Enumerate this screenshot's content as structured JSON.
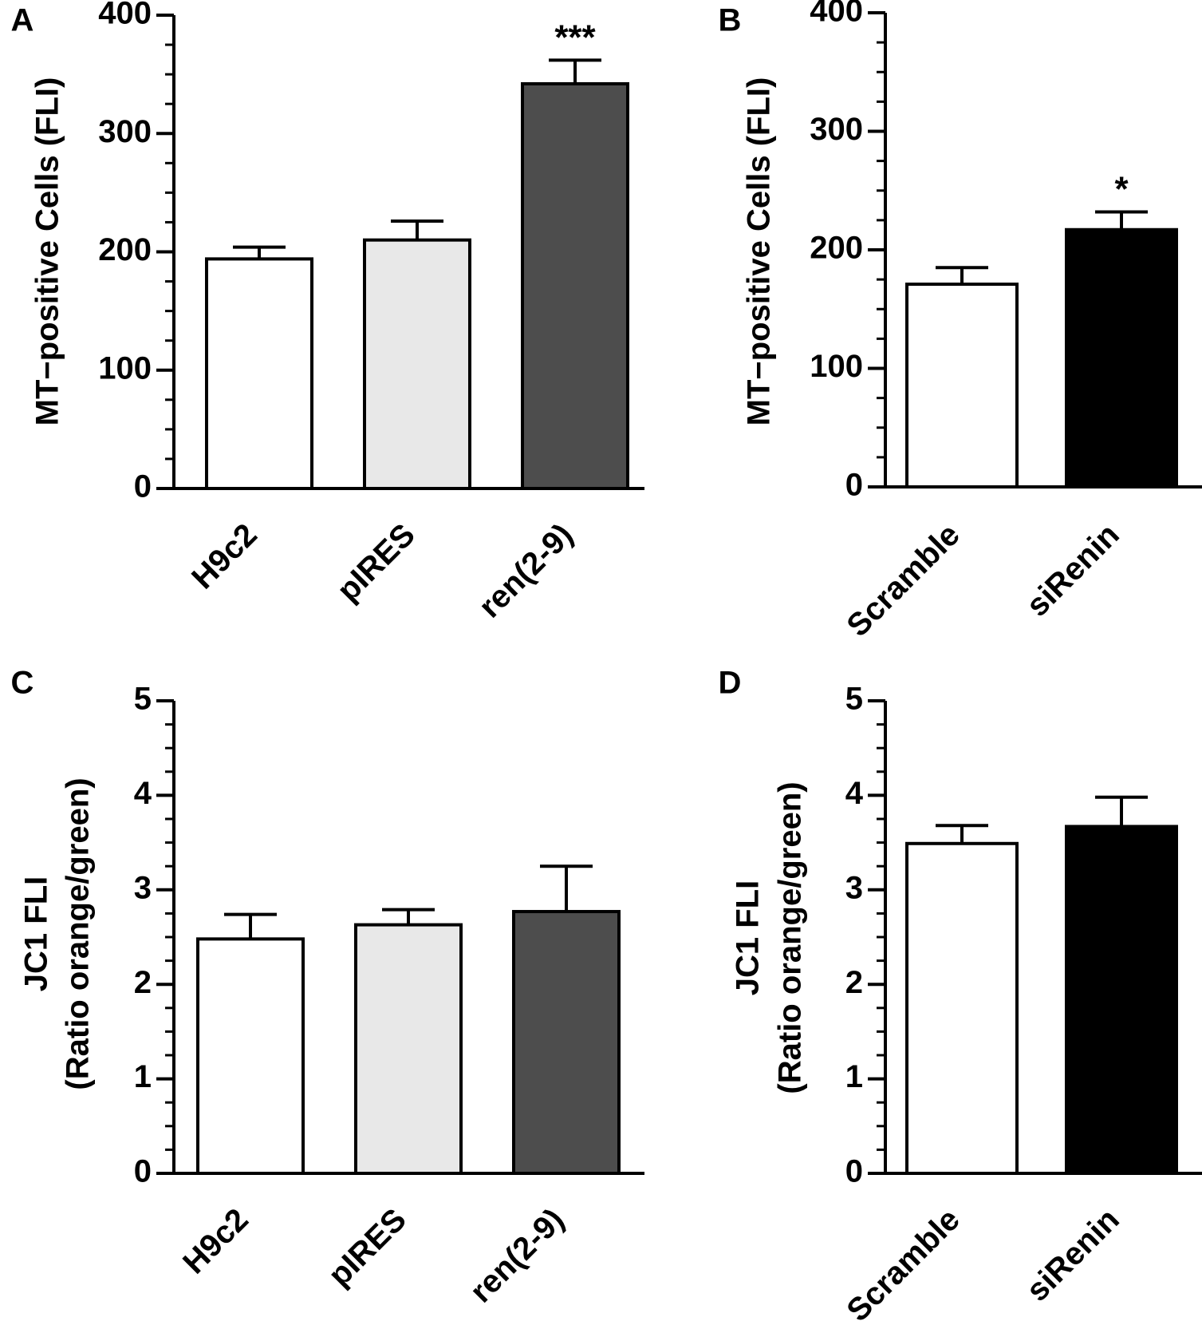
{
  "chart_data": [
    {
      "type": "bar",
      "panel_label": "A",
      "ylabel_lines": [
        "MT−positive Cells (FLI)"
      ],
      "categories": [
        "H9c2",
        "pIRES",
        "ren(2-9)"
      ],
      "values": [
        194,
        210,
        342
      ],
      "errors": [
        10,
        16,
        20
      ],
      "annotations": [
        "",
        "",
        "***"
      ],
      "bar_colors": [
        "#ffffff",
        "#e8e8e8",
        "#4d4d4d"
      ],
      "ylim": [
        0,
        400
      ],
      "yticks": [
        0,
        100,
        200,
        300,
        400
      ],
      "ytick_labels": [
        "0",
        "100",
        "200",
        "300",
        "400"
      ],
      "minor_step": 25,
      "grid": false
    },
    {
      "type": "bar",
      "panel_label": "B",
      "ylabel_lines": [
        "MT−positive Cells (FLI)"
      ],
      "categories": [
        "Scramble",
        "siRenin"
      ],
      "values": [
        171,
        217
      ],
      "errors": [
        14,
        15
      ],
      "annotations": [
        "",
        "*"
      ],
      "bar_colors": [
        "#ffffff",
        "#000000"
      ],
      "ylim": [
        0,
        400
      ],
      "yticks": [
        0,
        100,
        200,
        300,
        400
      ],
      "ytick_labels": [
        "0",
        "100",
        "200",
        "300",
        "400"
      ],
      "minor_step": 25,
      "grid": false
    },
    {
      "type": "bar",
      "panel_label": "C",
      "ylabel_lines": [
        "JC1 FLI",
        "(Ratio orange/green)"
      ],
      "categories": [
        "H9c2",
        "pIRES",
        "ren(2-9)"
      ],
      "values": [
        2.48,
        2.63,
        2.77
      ],
      "errors": [
        0.26,
        0.16,
        0.48
      ],
      "annotations": [
        "",
        "",
        ""
      ],
      "bar_colors": [
        "#ffffff",
        "#e8e8e8",
        "#4d4d4d"
      ],
      "ylim": [
        0,
        5
      ],
      "yticks": [
        0,
        1,
        2,
        3,
        4,
        5
      ],
      "ytick_labels": [
        "0",
        "1",
        "2",
        "3",
        "4",
        "5"
      ],
      "minor_step": 0.25,
      "grid": false
    },
    {
      "type": "bar",
      "panel_label": "D",
      "ylabel_lines": [
        "JC1 FLI",
        "(Ratio orange/green)"
      ],
      "categories": [
        "Scramble",
        "siRenin"
      ],
      "values": [
        3.49,
        3.67
      ],
      "errors": [
        0.19,
        0.31
      ],
      "annotations": [
        "",
        ""
      ],
      "bar_colors": [
        "#ffffff",
        "#000000"
      ],
      "ylim": [
        0,
        5
      ],
      "yticks": [
        0,
        1,
        2,
        3,
        4,
        5
      ],
      "ytick_labels": [
        "0",
        "1",
        "2",
        "3",
        "4",
        "5"
      ],
      "minor_step": 0.25,
      "grid": false
    }
  ]
}
